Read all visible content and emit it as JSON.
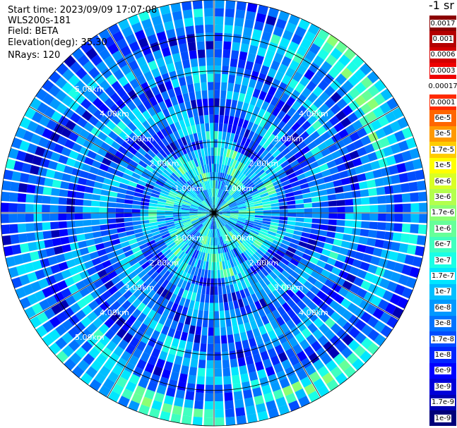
{
  "header": {
    "start_time": "Start time: 2023/09/09 17:07:08",
    "instrument": "WLS200s-181",
    "field": "Field: BETA",
    "elevation": "Elevation(deg): 35.30",
    "nrays": "NRays: 120"
  },
  "chart_data": {
    "type": "heatmap",
    "projection": "polar-ppi",
    "field": "BETA",
    "elevation_deg": 35.3,
    "n_rays": 120,
    "range_max_km": 6.0,
    "range_rings_km": [
      1,
      2,
      3,
      4,
      5,
      6
    ],
    "range_labels": [
      "1.00km",
      "2.00km",
      "3.00km",
      "4.00km",
      "5.00km"
    ],
    "azimuth_spokes_deg": [
      0,
      30,
      60,
      90,
      120,
      150,
      180,
      210,
      240,
      270,
      300,
      330
    ],
    "colorbar": {
      "title": "-1 sr",
      "scale": "log",
      "ticks": [
        "0.0017",
        "0.001",
        "0.0006",
        "0.0003",
        "0.00017",
        "0.0001",
        "6e-5",
        "3e-5",
        "1.7e-5",
        "1e-5",
        "6e-6",
        "3e-6",
        "1.7e-6",
        "1e-6",
        "6e-7",
        "3e-7",
        "1.7e-7",
        "1e-7",
        "6e-8",
        "3e-8",
        "1.7e-8",
        "1e-8",
        "6e-9",
        "3e-9",
        "1.7e-9",
        "1e-9"
      ],
      "colors": [
        "#8b0000",
        "#b40000",
        "#d20000",
        "#ee0000",
        "#ffffff",
        "#ff2a00",
        "#ff6600",
        "#ff9900",
        "#ffcc00",
        "#ffff00",
        "#d9ff26",
        "#b3ff4d",
        "#8cff73",
        "#66ff99",
        "#40ffbf",
        "#1affe6",
        "#00e6ff",
        "#00bfff",
        "#0099ff",
        "#0073ff",
        "#004dff",
        "#0026ff",
        "#0000ff",
        "#0000d9",
        "#0000b3",
        "#00007a"
      ]
    }
  }
}
